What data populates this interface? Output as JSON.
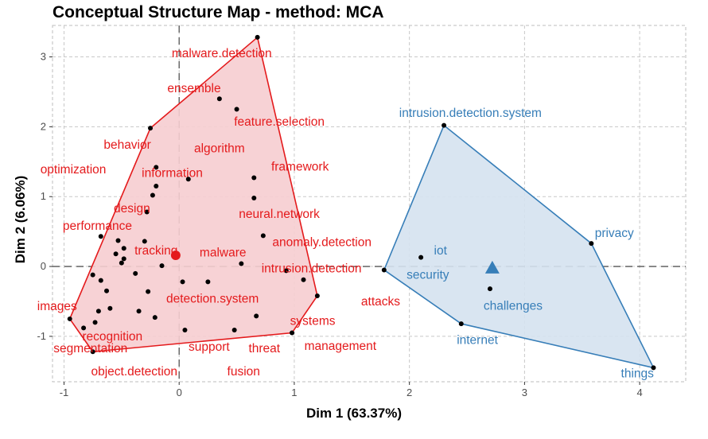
{
  "chart_data": {
    "type": "scatter",
    "title": "Conceptual Structure Map - method: MCA",
    "xlabel": "Dim 1 (63.37%)",
    "ylabel": "Dim 2 (6.06%)",
    "xlim": [
      -1.1,
      4.4
    ],
    "ylim": [
      -1.65,
      3.45
    ],
    "x_ticks": [
      -1,
      0,
      1,
      2,
      3,
      4
    ],
    "y_ticks": [
      -1,
      0,
      1,
      2,
      3
    ],
    "grid": true,
    "clusters": [
      {
        "color": "#e41a1c",
        "fill": "#f6cdd0",
        "centroid": [
          -0.03,
          0.16
        ],
        "hull": [
          [
            0.68,
            3.28
          ],
          [
            -0.25,
            1.98
          ],
          [
            -0.95,
            -0.75
          ],
          [
            -0.75,
            -1.22
          ],
          [
            0.98,
            -0.95
          ],
          [
            1.2,
            -0.42
          ],
          [
            0.68,
            3.28
          ]
        ],
        "points": [
          [
            0.68,
            3.28
          ],
          [
            0.35,
            2.4
          ],
          [
            0.5,
            2.25
          ],
          [
            -0.25,
            1.98
          ],
          [
            -0.2,
            1.42
          ],
          [
            0.08,
            1.25
          ],
          [
            0.65,
            1.27
          ],
          [
            -0.2,
            1.15
          ],
          [
            0.65,
            0.98
          ],
          [
            -0.23,
            1.02
          ],
          [
            -0.28,
            0.78
          ],
          [
            0.73,
            0.44
          ],
          [
            -0.68,
            0.43
          ],
          [
            -0.53,
            0.37
          ],
          [
            -0.3,
            0.36
          ],
          [
            -0.48,
            0.26
          ],
          [
            -0.55,
            0.18
          ],
          [
            -0.48,
            0.11
          ],
          [
            -0.5,
            0.05
          ],
          [
            0.54,
            0.04
          ],
          [
            -0.15,
            0.01
          ],
          [
            -0.75,
            -0.12
          ],
          [
            -0.38,
            -0.1
          ],
          [
            0.93,
            -0.06
          ],
          [
            1.08,
            -0.19
          ],
          [
            -0.68,
            -0.2
          ],
          [
            0.03,
            -0.22
          ],
          [
            0.25,
            -0.22
          ],
          [
            -0.63,
            -0.35
          ],
          [
            -0.27,
            -0.36
          ],
          [
            -0.6,
            -0.6
          ],
          [
            -0.35,
            -0.64
          ],
          [
            0.67,
            -0.71
          ],
          [
            -0.7,
            -0.64
          ],
          [
            -0.95,
            -0.75
          ],
          [
            -0.21,
            -0.73
          ],
          [
            -0.73,
            -0.8
          ],
          [
            -0.83,
            -0.88
          ],
          [
            0.05,
            -0.91
          ],
          [
            0.48,
            -0.91
          ],
          [
            0.98,
            -0.95
          ],
          [
            -0.75,
            -1.22
          ],
          [
            1.2,
            -0.42
          ]
        ],
        "labels": [
          {
            "text": "malware.detection",
            "x": 0.37,
            "y": 3.05
          },
          {
            "text": "ensemble",
            "x": 0.13,
            "y": 2.55
          },
          {
            "text": "feature.selection",
            "x": 0.87,
            "y": 2.07
          },
          {
            "text": "behavior",
            "x": -0.45,
            "y": 1.74
          },
          {
            "text": "algorithm",
            "x": 0.35,
            "y": 1.69
          },
          {
            "text": "optimization",
            "x": -0.92,
            "y": 1.39
          },
          {
            "text": "information",
            "x": -0.06,
            "y": 1.34
          },
          {
            "text": "framework",
            "x": 1.05,
            "y": 1.43
          },
          {
            "text": "design",
            "x": -0.41,
            "y": 0.83
          },
          {
            "text": "neural.network",
            "x": 0.87,
            "y": 0.75
          },
          {
            "text": "performance",
            "x": -0.71,
            "y": 0.58
          },
          {
            "text": "anomaly.detection",
            "x": 1.24,
            "y": 0.35
          },
          {
            "text": "tracking",
            "x": -0.2,
            "y": 0.23
          },
          {
            "text": "malware",
            "x": 0.38,
            "y": 0.2
          },
          {
            "text": "intrusion.detection",
            "x": 1.15,
            "y": -0.03
          },
          {
            "text": "detection.system",
            "x": 0.29,
            "y": -0.46
          },
          {
            "text": "attacks",
            "x": 1.75,
            "y": -0.5
          },
          {
            "text": "images",
            "x": -1.06,
            "y": -0.57
          },
          {
            "text": "systems",
            "x": 1.16,
            "y": -0.78
          },
          {
            "text": "recognition",
            "x": -0.58,
            "y": -1.0
          },
          {
            "text": "segmentation",
            "x": -0.77,
            "y": -1.17
          },
          {
            "text": "support",
            "x": 0.26,
            "y": -1.15
          },
          {
            "text": "threat",
            "x": 0.74,
            "y": -1.17
          },
          {
            "text": "management",
            "x": 1.4,
            "y": -1.14
          },
          {
            "text": "object.detection",
            "x": -0.39,
            "y": -1.5
          },
          {
            "text": "fusion",
            "x": 0.56,
            "y": -1.5
          }
        ]
      },
      {
        "color": "#377eb8",
        "fill": "#d5e2ef",
        "centroid": [
          2.72,
          -0.02
        ],
        "hull": [
          [
            2.3,
            2.02
          ],
          [
            1.78,
            -0.05
          ],
          [
            2.45,
            -0.82
          ],
          [
            4.12,
            -1.45
          ],
          [
            3.58,
            0.33
          ],
          [
            2.3,
            2.02
          ]
        ],
        "points": [
          [
            2.3,
            2.02
          ],
          [
            1.78,
            -0.05
          ],
          [
            2.1,
            0.13
          ],
          [
            2.7,
            -0.32
          ],
          [
            2.45,
            -0.82
          ],
          [
            3.58,
            0.33
          ],
          [
            4.12,
            -1.45
          ]
        ],
        "labels": [
          {
            "text": "intrusion.detection.system",
            "x": 2.53,
            "y": 2.2
          },
          {
            "text": "privacy",
            "x": 3.78,
            "y": 0.48
          },
          {
            "text": "iot",
            "x": 2.27,
            "y": 0.23
          },
          {
            "text": "security",
            "x": 2.16,
            "y": -0.12
          },
          {
            "text": "challenges",
            "x": 2.9,
            "y": -0.56
          },
          {
            "text": "internet",
            "x": 2.59,
            "y": -1.05
          },
          {
            "text": "things",
            "x": 3.98,
            "y": -1.53
          }
        ]
      }
    ]
  }
}
